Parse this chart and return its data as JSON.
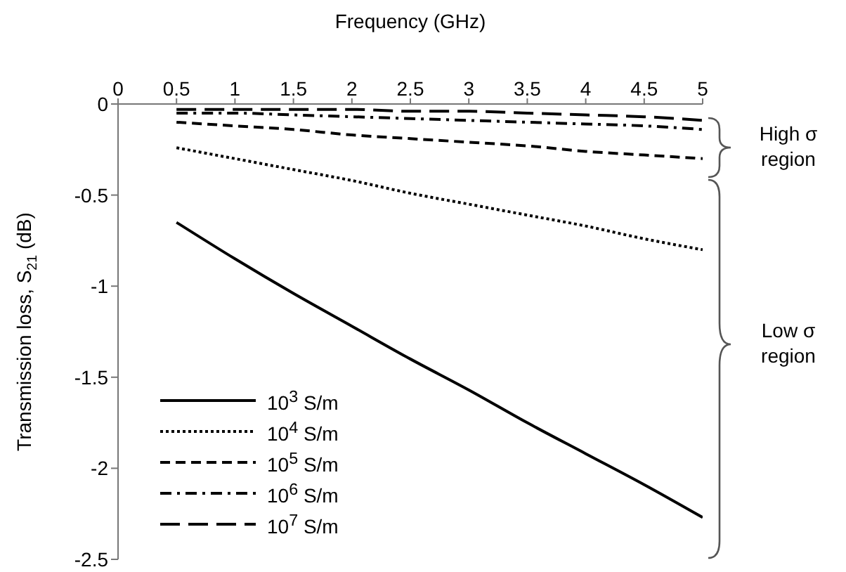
{
  "chart_data": {
    "type": "line",
    "xlabel": "Frequency (GHz)",
    "ylabel": "Transmission loss, S$_{21}$ (dB)",
    "x": [
      0.5,
      1,
      1.5,
      2,
      2.5,
      3,
      3.5,
      4,
      4.5,
      5
    ],
    "xlim": [
      0,
      5
    ],
    "xticks": [
      0,
      0.5,
      1,
      1.5,
      2,
      2.5,
      3,
      3.5,
      4,
      4.5,
      5
    ],
    "ylim": [
      -2.5,
      0
    ],
    "yticks": [
      0,
      -0.5,
      -1,
      -1.5,
      -2,
      -2.5
    ],
    "grid": false,
    "legend": "bottom left",
    "marker": "none",
    "series": [
      {
        "name": "10$^{3}$ S/m",
        "color": "#000000",
        "line_style": "solid",
        "values": [
          -0.65,
          -0.85,
          -1.04,
          -1.22,
          -1.4,
          -1.57,
          -1.75,
          -1.92,
          -2.09,
          -2.27
        ]
      },
      {
        "name": "10$^{4}$ S/m",
        "color": "#000000",
        "line_style": "dotted",
        "values": [
          -0.24,
          -0.3,
          -0.36,
          -0.42,
          -0.49,
          -0.55,
          -0.61,
          -0.67,
          -0.74,
          -0.8
        ]
      },
      {
        "name": "10$^{5}$ S/m",
        "color": "#000000",
        "line_style": "dashed",
        "values": [
          -0.1,
          -0.12,
          -0.14,
          -0.17,
          -0.19,
          -0.21,
          -0.23,
          -0.26,
          -0.28,
          -0.3
        ]
      },
      {
        "name": "10$^{6}$ S/m",
        "color": "#000000",
        "line_style": "dashdot",
        "values": [
          -0.05,
          -0.05,
          -0.06,
          -0.07,
          -0.08,
          -0.09,
          -0.1,
          -0.11,
          -0.12,
          -0.14
        ]
      },
      {
        "name": "10$^{7}$ S/m",
        "color": "#000000",
        "line_style": "longdash",
        "values": [
          -0.03,
          -0.03,
          -0.03,
          -0.03,
          -0.04,
          -0.04,
          -0.05,
          -0.06,
          -0.07,
          -0.09
        ]
      }
    ],
    "annotations": [
      "High σ region",
      "Low σ region"
    ]
  }
}
